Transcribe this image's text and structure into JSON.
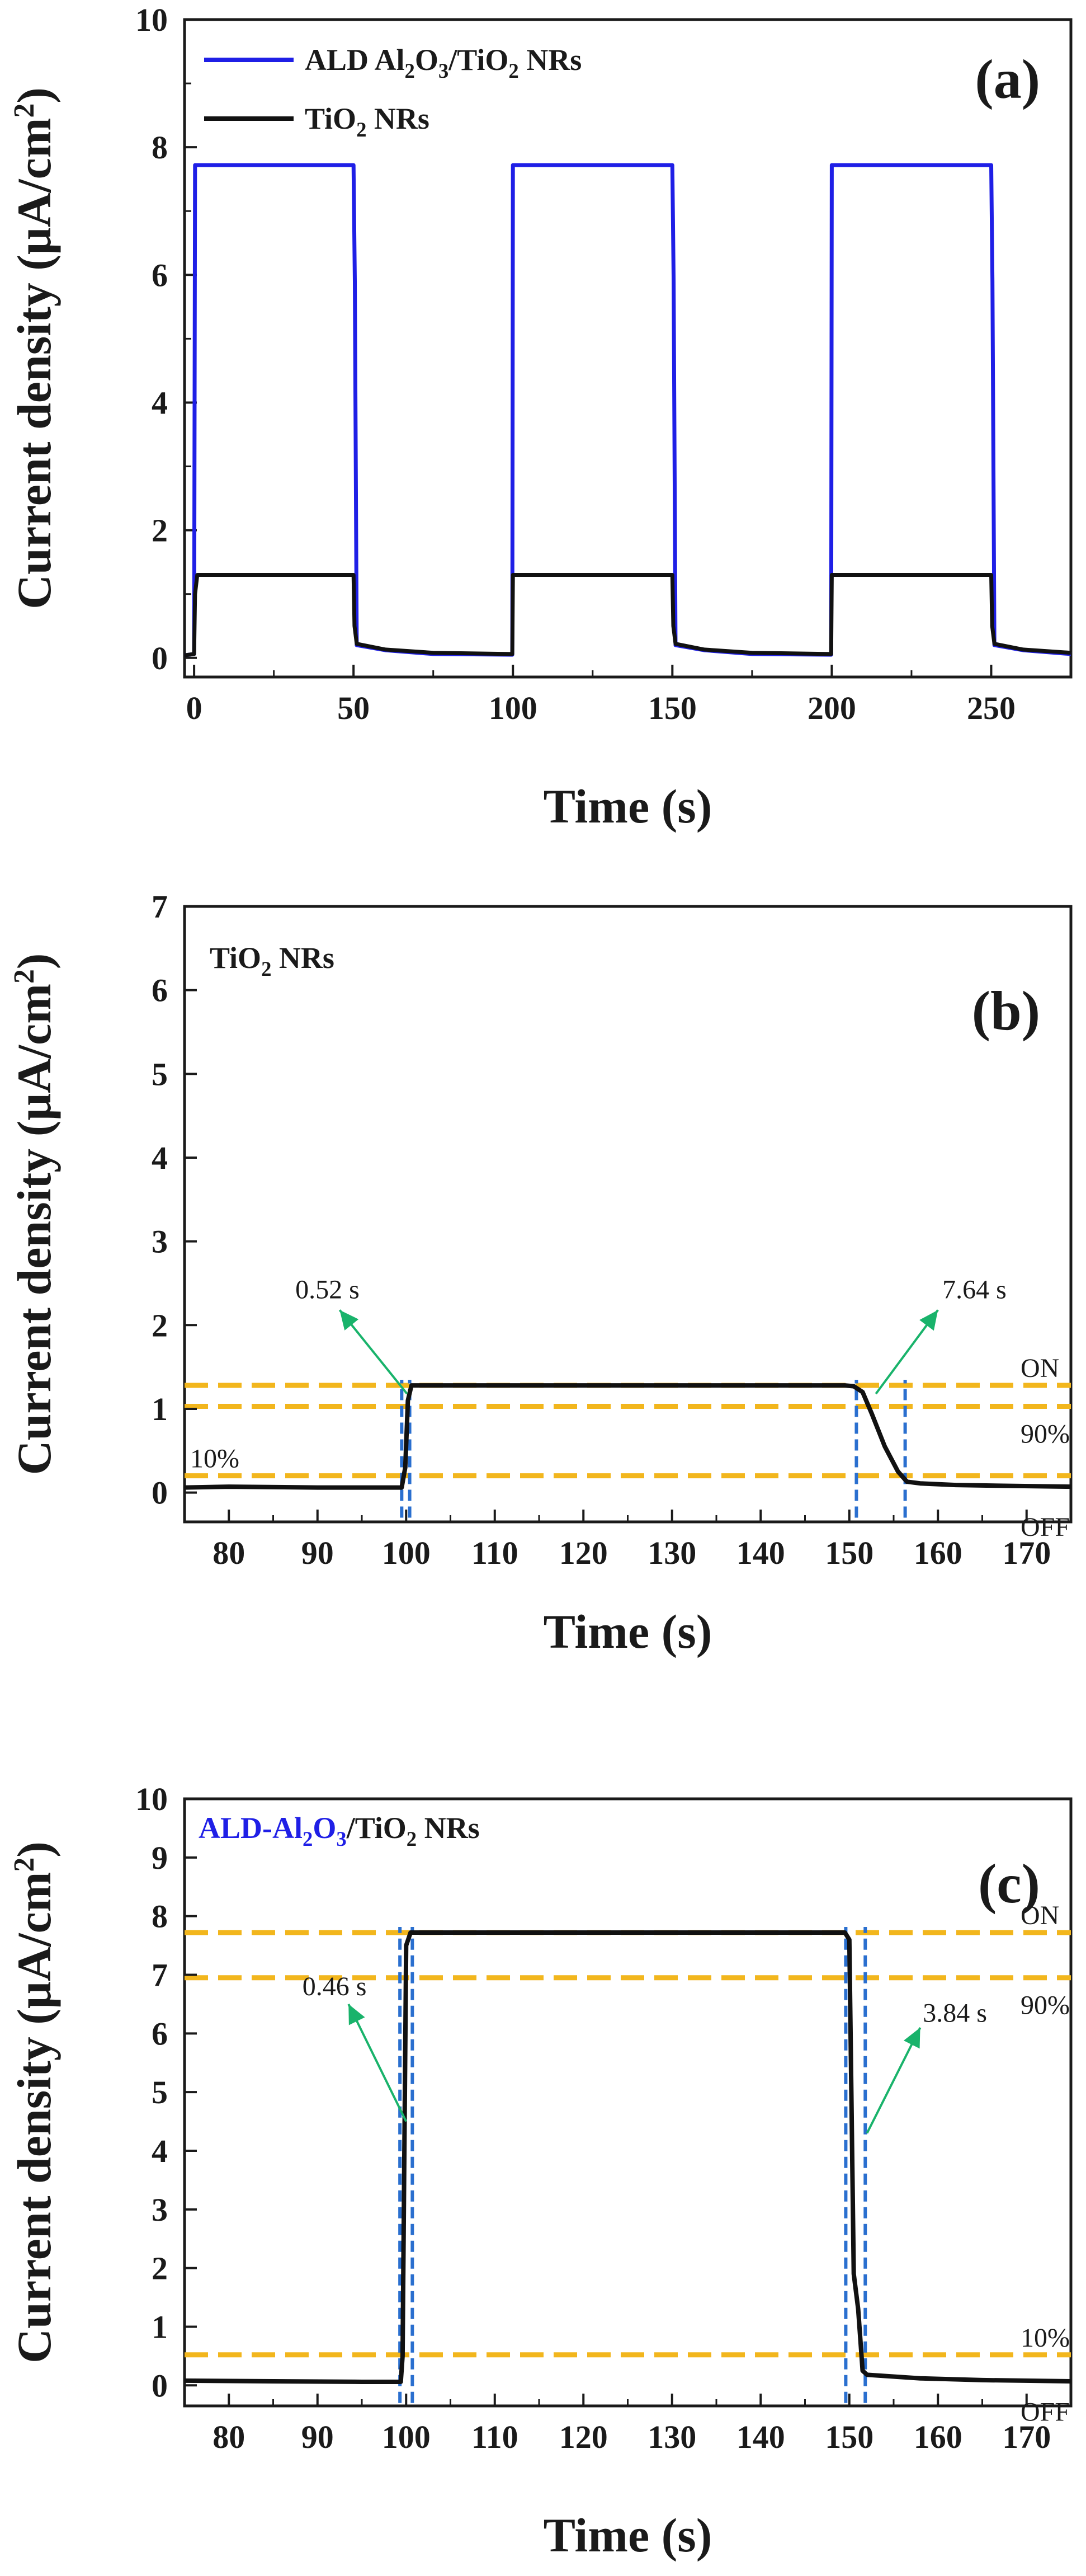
{
  "colors": {
    "blue_series": "#1f1fe6",
    "black_series": "#111111",
    "threshold": "#f2b61d",
    "marker": "#2a6fcf",
    "arrow": "#19b36b",
    "axis": "#1a1a1a"
  },
  "chart_data": [
    {
      "type": "line",
      "panel_label": "(a)",
      "xlabel": "Time (s)",
      "ylabel": "Current density (μA/cm²)",
      "ylabel_parts": {
        "main": "Current density (μA/cm",
        "sup": "2",
        "close": ")"
      },
      "xlim": [
        -3,
        275
      ],
      "ylim": [
        -0.3,
        10
      ],
      "xticks": [
        0,
        50,
        100,
        150,
        200,
        250
      ],
      "yticks": [
        0,
        2,
        4,
        6,
        8,
        10
      ],
      "legend_position": "top-left",
      "series": [
        {
          "name": "ALD Al2O3/TiO2 NRs",
          "legend_parts": [
            [
              "ALD Al",
              ""
            ],
            [
              "2",
              "sub"
            ],
            [
              "O",
              ""
            ],
            [
              "3",
              "sub"
            ],
            [
              "/TiO",
              ""
            ],
            [
              "2",
              "sub"
            ],
            [
              " NRs",
              ""
            ]
          ],
          "color_key": "blue_series",
          "x": [
            -3,
            0,
            0.3,
            1,
            50,
            50.4,
            51,
            60,
            75,
            99.8,
            100,
            100.5,
            150,
            150.4,
            151,
            160,
            175,
            199.8,
            200,
            200.5,
            250,
            250.4,
            251,
            260,
            275
          ],
          "y": [
            0.04,
            0.06,
            7.72,
            7.72,
            7.72,
            5.9,
            0.2,
            0.12,
            0.06,
            0.05,
            7.72,
            7.72,
            7.72,
            5.9,
            0.2,
            0.12,
            0.06,
            0.05,
            7.72,
            7.72,
            7.72,
            5.9,
            0.2,
            0.12,
            0.06
          ]
        },
        {
          "name": "TiO2 NRs",
          "legend_parts": [
            [
              "TiO",
              ""
            ],
            [
              "2",
              "sub"
            ],
            [
              " NRs",
              ""
            ]
          ],
          "color_key": "black_series",
          "x": [
            -3,
            0,
            0.3,
            1,
            50,
            50.3,
            51,
            60,
            75,
            99.8,
            100,
            100.3,
            150,
            150.3,
            151,
            160,
            175,
            199.8,
            200,
            200.3,
            250,
            250.3,
            251,
            260,
            275
          ],
          "y": [
            0.04,
            0.06,
            1.0,
            1.3,
            1.3,
            0.5,
            0.22,
            0.13,
            0.08,
            0.06,
            1.3,
            1.3,
            1.3,
            0.5,
            0.22,
            0.13,
            0.08,
            0.06,
            1.3,
            1.3,
            1.3,
            0.5,
            0.22,
            0.13,
            0.08
          ]
        }
      ]
    },
    {
      "type": "line",
      "panel_label": "(b)",
      "inset_title_parts": [
        [
          "TiO",
          ""
        ],
        [
          "2",
          "sub"
        ],
        [
          " NRs",
          ""
        ]
      ],
      "xlabel": "Time (s)",
      "ylabel": "Current density (μA/cm²)",
      "ylabel_parts": {
        "main": "Current density (μA/cm",
        "sup": "2",
        "close": ")"
      },
      "xlim": [
        75,
        175
      ],
      "ylim": [
        -0.35,
        7
      ],
      "xticks": [
        80,
        90,
        100,
        110,
        120,
        130,
        140,
        150,
        160,
        170
      ],
      "yticks": [
        0,
        1,
        2,
        3,
        4,
        5,
        6,
        7
      ],
      "series": [
        {
          "name": "TiO2 NRs",
          "color_key": "black_series",
          "x": [
            75,
            80,
            90,
            99.5,
            99.9,
            100.2,
            100.6,
            110,
            120,
            130,
            140,
            149.5,
            150.5,
            151.5,
            152.5,
            154,
            155.5,
            156.5,
            158,
            162,
            168,
            175
          ],
          "y": [
            0.06,
            0.07,
            0.06,
            0.06,
            0.3,
            1.1,
            1.28,
            1.28,
            1.28,
            1.28,
            1.28,
            1.28,
            1.27,
            1.2,
            0.95,
            0.55,
            0.25,
            0.13,
            0.11,
            0.09,
            0.08,
            0.07
          ]
        }
      ],
      "threshold_lines": [
        {
          "label": "ON",
          "y": 1.28
        },
        {
          "label": "90%",
          "y": 1.03
        },
        {
          "label": "10%",
          "y": 0.2
        },
        {
          "label": "OFF",
          "y": -0.25
        }
      ],
      "markers_x": [
        99.5,
        100.4,
        150.8,
        156.3
      ],
      "annotations": [
        {
          "text": "0.52 s",
          "arrow_from": [
            100.1,
            1.18
          ],
          "arrow_to": [
            92.5,
            2.18
          ],
          "text_at": [
            87.5,
            2.32
          ]
        },
        {
          "text": "7.64 s",
          "arrow_from": [
            153,
            1.18
          ],
          "arrow_to": [
            160,
            2.18
          ],
          "text_at": [
            160.5,
            2.32
          ]
        }
      ]
    },
    {
      "type": "line",
      "panel_label": "(c)",
      "inset_title_parts": [
        [
          "ALD-Al",
          "blue"
        ],
        [
          "2",
          "bluesub"
        ],
        [
          "O",
          "blue"
        ],
        [
          "3",
          "bluesub"
        ],
        [
          "/TiO",
          ""
        ],
        [
          "2",
          "sub"
        ],
        [
          " NRs",
          ""
        ]
      ],
      "xlabel": "Time (s)",
      "ylabel": "Current density (μA/cm²)",
      "ylabel_parts": {
        "main": "Current density (μA/cm",
        "sup": "2",
        "close": ")"
      },
      "xlim": [
        75,
        175
      ],
      "ylim": [
        -0.35,
        10
      ],
      "xticks": [
        80,
        90,
        100,
        110,
        120,
        130,
        140,
        150,
        160,
        170
      ],
      "yticks": [
        0,
        1,
        2,
        3,
        4,
        5,
        6,
        7,
        8,
        9,
        10
      ],
      "series": [
        {
          "name": "ALD-Al2O3/TiO2 NRs",
          "color_key": "black_series",
          "x": [
            75,
            85,
            95,
            99.4,
            99.6,
            100.0,
            100.5,
            110,
            120,
            130,
            140,
            149.5,
            150.0,
            150.5,
            151.0,
            151.5,
            152,
            158,
            165,
            175
          ],
          "y": [
            0.08,
            0.07,
            0.06,
            0.06,
            0.5,
            7.5,
            7.72,
            7.72,
            7.72,
            7.72,
            7.72,
            7.72,
            7.6,
            1.9,
            1.3,
            0.25,
            0.18,
            0.12,
            0.09,
            0.07
          ]
        }
      ],
      "threshold_lines": [
        {
          "label": "ON",
          "y": 7.72
        },
        {
          "label": "90%",
          "y": 6.95
        },
        {
          "label": "10%",
          "y": 0.52
        },
        {
          "label": "OFF",
          "y": -0.22
        }
      ],
      "markers_x": [
        99.3,
        100.7,
        149.6,
        151.8
      ],
      "annotations": [
        {
          "text": "0.46 s",
          "arrow_from": [
            100.0,
            4.5
          ],
          "arrow_to": [
            93.5,
            6.5
          ],
          "text_at": [
            88.3,
            6.65
          ]
        },
        {
          "text": "3.84 s",
          "arrow_from": [
            152,
            4.3
          ],
          "arrow_to": [
            158,
            6.1
          ],
          "text_at": [
            158.3,
            6.2
          ]
        }
      ]
    }
  ]
}
